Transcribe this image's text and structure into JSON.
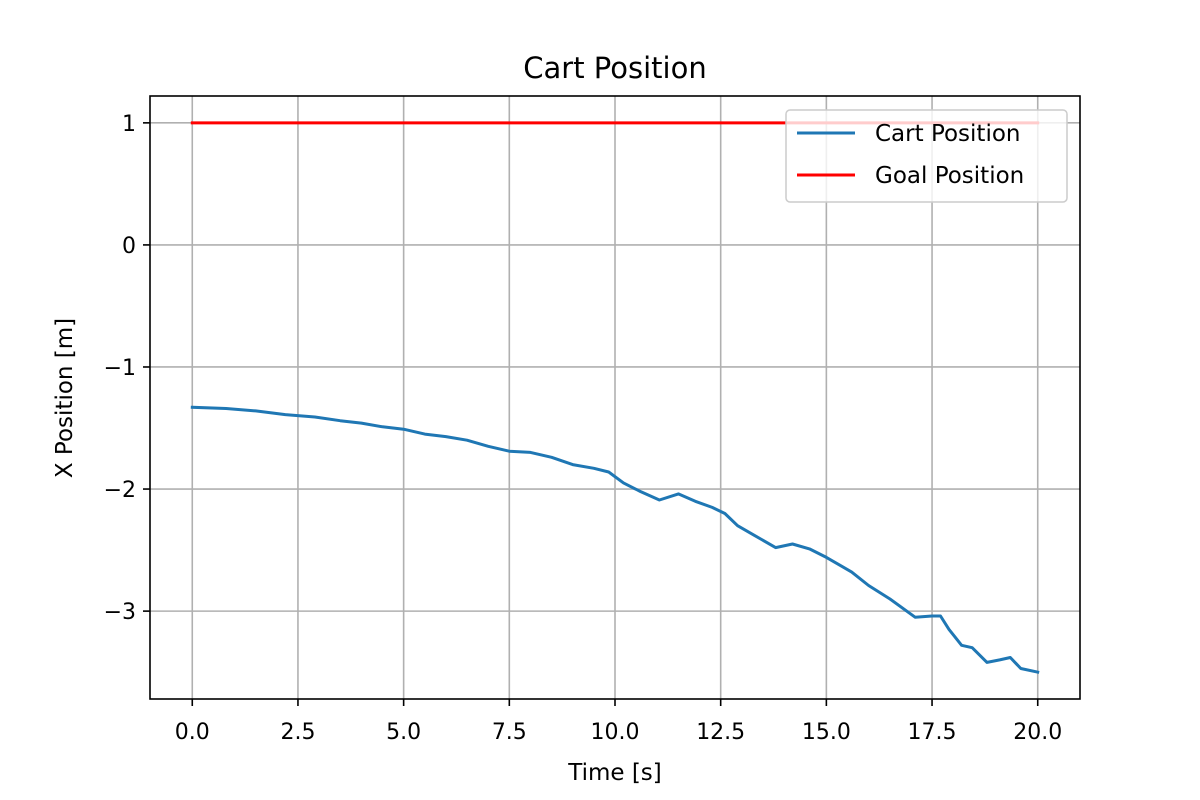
{
  "chart_data": {
    "type": "line",
    "title": "Cart Position",
    "xlabel": "Time [s]",
    "ylabel": "X Position [m]",
    "xlim": [
      -1.0,
      21.0
    ],
    "ylim": [
      -3.72,
      1.22
    ],
    "xticks": [
      0.0,
      2.5,
      5.0,
      7.5,
      10.0,
      12.5,
      15.0,
      17.5,
      20.0
    ],
    "xtick_labels": [
      "0.0",
      "2.5",
      "5.0",
      "7.5",
      "10.0",
      "12.5",
      "15.0",
      "17.5",
      "20.0"
    ],
    "yticks": [
      1,
      0,
      -1,
      -2,
      -3
    ],
    "ytick_labels": [
      "1",
      "0",
      "−1",
      "−2",
      "−3"
    ],
    "grid": true,
    "legend_position": "top-right",
    "series": [
      {
        "name": "Cart Position",
        "color": "#1f77b4",
        "x": [
          0.0,
          0.8,
          1.5,
          2.2,
          2.9,
          3.5,
          4.0,
          4.5,
          5.0,
          5.5,
          6.0,
          6.5,
          7.0,
          7.5,
          8.0,
          8.5,
          9.0,
          9.5,
          9.85,
          10.2,
          10.6,
          11.05,
          11.5,
          11.9,
          12.3,
          12.6,
          12.9,
          13.3,
          13.8,
          14.2,
          14.6,
          15.0,
          15.3,
          15.6,
          16.0,
          16.5,
          17.1,
          17.5,
          17.7,
          17.9,
          18.2,
          18.45,
          18.8,
          19.1,
          19.35,
          19.6,
          20.0
        ],
        "y": [
          -1.33,
          -1.34,
          -1.36,
          -1.39,
          -1.41,
          -1.44,
          -1.46,
          -1.49,
          -1.51,
          -1.55,
          -1.57,
          -1.6,
          -1.65,
          -1.69,
          -1.7,
          -1.74,
          -1.8,
          -1.83,
          -1.86,
          -1.95,
          -2.02,
          -2.09,
          -2.04,
          -2.1,
          -2.15,
          -2.2,
          -2.3,
          -2.38,
          -2.48,
          -2.45,
          -2.49,
          -2.56,
          -2.62,
          -2.68,
          -2.79,
          -2.9,
          -3.05,
          -3.04,
          -3.04,
          -3.15,
          -3.28,
          -3.3,
          -3.42,
          -3.4,
          -3.38,
          -3.47,
          -3.5
        ]
      },
      {
        "name": "Goal Position",
        "color": "#ff0000",
        "x": [
          0.0,
          20.0
        ],
        "y": [
          1.0,
          1.0
        ]
      }
    ]
  }
}
